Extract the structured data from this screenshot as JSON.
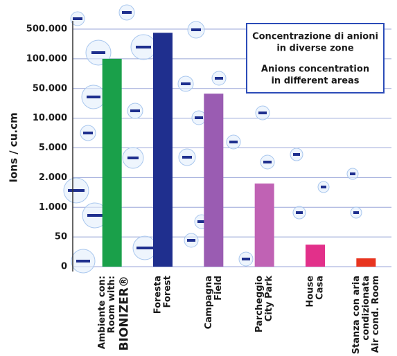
{
  "chart_data": {
    "type": "bar",
    "title_lines": [
      "Concentrazione di anioni",
      "in diverse zone"
    ],
    "subtitle_lines": [
      "Anions concentration",
      "in different areas"
    ],
    "y_label": "Ions / cu.cm",
    "categories": [
      [
        "Ambiente con:",
        "Room with:",
        "BIONIZER®"
      ],
      [
        "Foresta",
        "Forest"
      ],
      [
        "Campagna",
        "Field"
      ],
      [
        "Parcheggio",
        "City Park"
      ],
      [
        "House",
        "Casa"
      ],
      [
        "Stanza con aria",
        "condizionata",
        "Air cond. Room"
      ]
    ],
    "values": [
      100000,
      450000,
      43000,
      1800,
      37,
      14
    ],
    "colors": [
      "#1aa04a",
      "#1f2f8e",
      "#9a5cb2",
      "#c062b4",
      "#e2308a",
      "#e8341f"
    ],
    "ylim": [
      0,
      500000
    ],
    "yticks": [
      0,
      50,
      {
        "value": 1000,
        "label": "1.000"
      },
      {
        "value": 2000,
        "label": "2.000"
      },
      {
        "value": 5000,
        "label": "5.000"
      },
      {
        "value": 10000,
        "label": "10.000"
      },
      {
        "value": 50000,
        "label": "50.000"
      },
      {
        "value": 100000,
        "label": "100.000"
      },
      {
        "value": 500000,
        "label": "500.000"
      }
    ],
    "grid": true
  }
}
